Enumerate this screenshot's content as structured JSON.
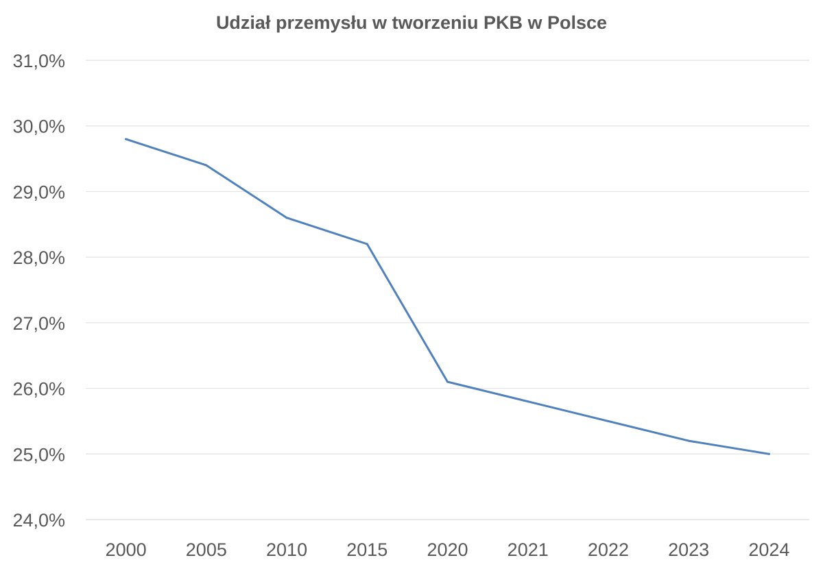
{
  "chart_data": {
    "type": "line",
    "title": "Udział przemysłu w tworzeniu PKB w Polsce",
    "xlabel": "",
    "ylabel": "",
    "categories": [
      "2000",
      "2005",
      "2010",
      "2015",
      "2020",
      "2021",
      "2022",
      "2023",
      "2024"
    ],
    "series": [
      {
        "values": [
          29.8,
          29.4,
          28.6,
          28.2,
          26.1,
          25.8,
          25.5,
          25.2,
          25.0
        ],
        "color": "#4f81bd"
      }
    ],
    "ylim": [
      24.0,
      31.0
    ],
    "yticks": [
      "24,0%",
      "25,0%",
      "26,0%",
      "27,0%",
      "28,0%",
      "29,0%",
      "30,0%",
      "31,0%"
    ],
    "grid": true,
    "legend": "none"
  }
}
